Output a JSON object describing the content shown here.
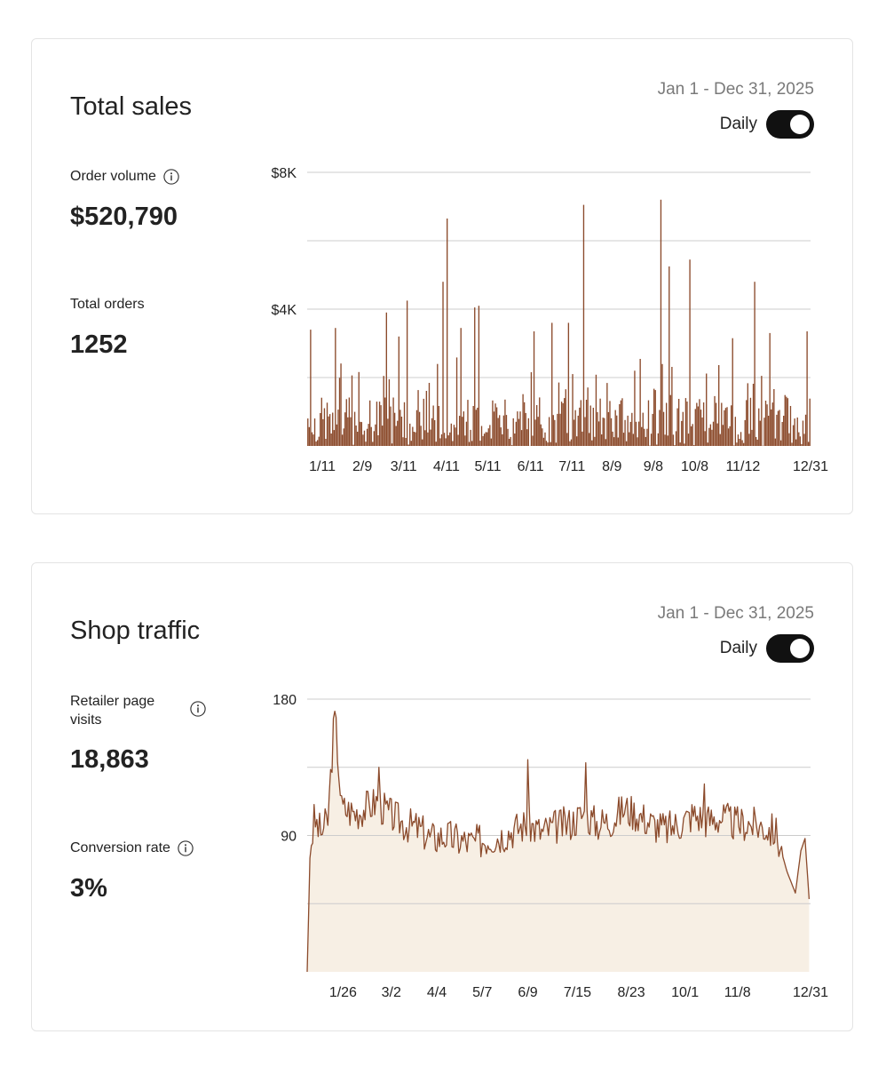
{
  "sales_card": {
    "title": "Total sales",
    "date_range": "Jan 1 - Dec 31, 2025",
    "toggle_label": "Daily",
    "order_volume_label": "Order volume",
    "order_volume_value": "$520,790",
    "total_orders_label": "Total orders",
    "total_orders_value": "1252"
  },
  "traffic_card": {
    "title": "Shop traffic",
    "date_range": "Jan 1 - Dec 31, 2025",
    "toggle_label": "Daily",
    "visits_label": "Retailer page visits",
    "visits_value": "18,863",
    "conversion_label": "Conversion rate",
    "conversion_value": "3%"
  },
  "colors": {
    "series": "#8b4a2b",
    "area_fill": "#f7efe4",
    "grid": "#cccccc"
  },
  "chart_data": [
    {
      "type": "bar",
      "title": "Total sales",
      "ylim": [
        0,
        8000
      ],
      "y_ticks": [
        {
          "value": 8000,
          "label": "$8K"
        },
        {
          "value": 4000,
          "label": "$4K"
        }
      ],
      "grid_values": [
        8000,
        6000,
        4000,
        2000
      ],
      "x_tick_labels": [
        "1/11",
        "2/9",
        "3/11",
        "4/11",
        "5/11",
        "6/11",
        "7/11",
        "8/9",
        "9/8",
        "10/8",
        "11/12",
        "12/31"
      ],
      "x_tick_days": [
        11,
        40,
        70,
        101,
        131,
        162,
        192,
        221,
        251,
        281,
        316,
        365
      ],
      "days": 365,
      "spikes": [
        [
          2,
          3400
        ],
        [
          20,
          3450
        ],
        [
          57,
          3900
        ],
        [
          66,
          3200
        ],
        [
          72,
          4250
        ],
        [
          98,
          4800
        ],
        [
          101,
          6650
        ],
        [
          111,
          3450
        ],
        [
          121,
          4050
        ],
        [
          124,
          4100
        ],
        [
          164,
          3350
        ],
        [
          177,
          3600
        ],
        [
          189,
          3600
        ],
        [
          200,
          7050
        ],
        [
          237,
          2200
        ],
        [
          256,
          7200
        ],
        [
          262,
          5250
        ],
        [
          277,
          5450
        ],
        [
          308,
          3150
        ],
        [
          324,
          4800
        ],
        [
          335,
          3300
        ],
        [
          362,
          3350
        ]
      ],
      "base_seed": 7,
      "base_max": 2600
    },
    {
      "type": "area",
      "title": "Shop traffic",
      "ylim": [
        0,
        180
      ],
      "y_ticks": [
        {
          "value": 180,
          "label": "180"
        },
        {
          "value": 90,
          "label": "90"
        }
      ],
      "grid_values": [
        180,
        135,
        90,
        45
      ],
      "x_tick_labels": [
        "1/26",
        "3/2",
        "4/4",
        "5/7",
        "6/9",
        "7/15",
        "8/23",
        "10/1",
        "11/8",
        "12/31"
      ],
      "x_tick_days": [
        26,
        61,
        94,
        127,
        160,
        196,
        235,
        274,
        312,
        365
      ],
      "days": 365,
      "anchors": [
        [
          0,
          0
        ],
        [
          2,
          75
        ],
        [
          5,
          100
        ],
        [
          10,
          92
        ],
        [
          15,
          100
        ],
        [
          20,
          172
        ],
        [
          25,
          108
        ],
        [
          35,
          105
        ],
        [
          50,
          112
        ],
        [
          60,
          104
        ],
        [
          70,
          98
        ],
        [
          80,
          95
        ],
        [
          90,
          88
        ],
        [
          100,
          90
        ],
        [
          110,
          87
        ],
        [
          120,
          85
        ],
        [
          130,
          88
        ],
        [
          140,
          90
        ],
        [
          150,
          94
        ],
        [
          160,
          98
        ],
        [
          170,
          92
        ],
        [
          180,
          96
        ],
        [
          190,
          98
        ],
        [
          200,
          104
        ],
        [
          210,
          98
        ],
        [
          220,
          100
        ],
        [
          230,
          108
        ],
        [
          240,
          104
        ],
        [
          250,
          98
        ],
        [
          260,
          94
        ],
        [
          270,
          98
        ],
        [
          280,
          104
        ],
        [
          290,
          100
        ],
        [
          300,
          102
        ],
        [
          310,
          98
        ],
        [
          320,
          98
        ],
        [
          330,
          96
        ],
        [
          340,
          92
        ],
        [
          348,
          66
        ],
        [
          354,
          52
        ],
        [
          358,
          80
        ],
        [
          361,
          88
        ],
        [
          364,
          48
        ]
      ],
      "peaks": [
        [
          20,
          172
        ],
        [
          52,
          135
        ],
        [
          160,
          140
        ],
        [
          202,
          138
        ],
        [
          288,
          124
        ]
      ],
      "noise": 12,
      "noise_seed": 3
    }
  ]
}
